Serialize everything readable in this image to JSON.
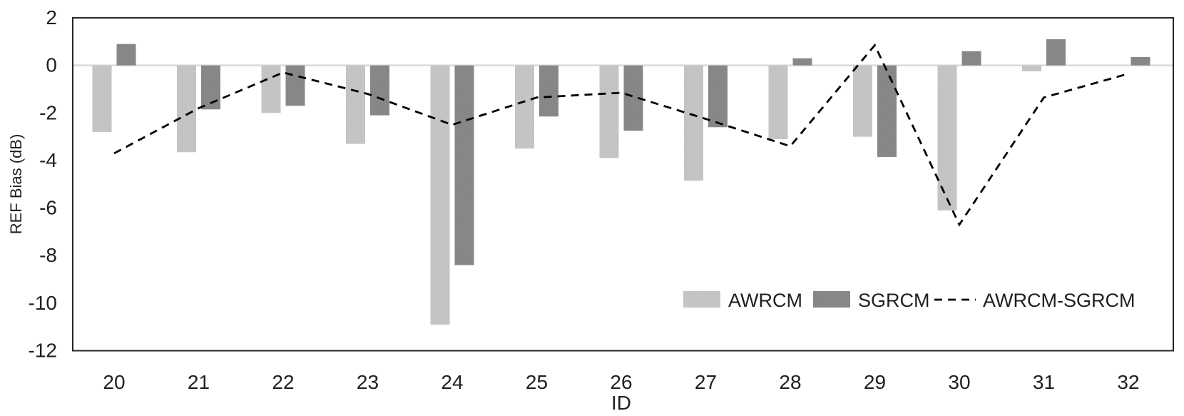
{
  "chart_data": {
    "type": "bar",
    "title": "",
    "xlabel": "ID",
    "ylabel": "REF Bias (dB)",
    "ylim": [
      -12,
      2
    ],
    "yticks": [
      2,
      0,
      -2,
      -4,
      -6,
      -8,
      -10,
      -12
    ],
    "ytick_labels": [
      "2",
      "0",
      "-2",
      "-4",
      "-6",
      "-8",
      "-10",
      "-12"
    ],
    "categories": [
      "20",
      "21",
      "22",
      "23",
      "24",
      "25",
      "26",
      "27",
      "28",
      "29",
      "30",
      "31",
      "32"
    ],
    "series": [
      {
        "name": "AWRCM",
        "type": "bar",
        "color": "#c9c9c9",
        "values": [
          -2.8,
          -3.65,
          -2.0,
          -3.3,
          -10.9,
          -3.5,
          -3.9,
          -4.85,
          -3.1,
          -3.0,
          -6.1,
          -0.25,
          0
        ]
      },
      {
        "name": "SGRCM",
        "type": "bar",
        "color": "#8b8b8b",
        "values": [
          0.9,
          -1.85,
          -1.7,
          -2.1,
          -8.4,
          -2.15,
          -2.75,
          -2.6,
          0.3,
          -3.85,
          0.6,
          1.1,
          0.35
        ]
      },
      {
        "name": "AWRCM-SGRCM",
        "type": "line",
        "style": "dashed",
        "color": "#000000",
        "values": [
          -3.7,
          -1.8,
          -0.3,
          -1.2,
          -2.5,
          -1.35,
          -1.15,
          -2.25,
          -3.4,
          0.85,
          -6.7,
          -1.35,
          -0.35
        ]
      }
    ],
    "legend": {
      "position": "inside-bottom-right",
      "entries": [
        "AWRCM",
        "SGRCM",
        "AWRCM-SGRCM"
      ]
    },
    "grid": "zero-line-only",
    "colors": {
      "zero_gridline": "#d9d9d9",
      "axis_border": "#262626",
      "text": "#1f1f1f"
    }
  }
}
